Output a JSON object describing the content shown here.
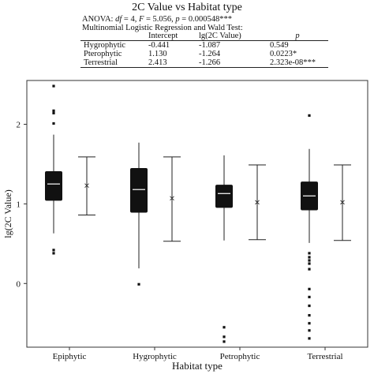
{
  "header": {
    "title": "2C Value vs Habitat type",
    "anova_prefix": "ANOVA: ",
    "anova_df": "df",
    "anova_df_val": " = 4, ",
    "anova_f": "F",
    "anova_f_val": " = 5.056, ",
    "anova_p": "p",
    "anova_p_val": " = 0.000548***",
    "mlr_title": "Multinomial Logistic Regression and Wald Test:",
    "table_headers": [
      "",
      "Intercept",
      "lg(2C Value)",
      "p"
    ],
    "table_rows": [
      [
        "Hygrophytic",
        "-0.441",
        "-1.087",
        "0.549"
      ],
      [
        "Pterophytic",
        "1.130",
        "-1.264",
        "0.0223*"
      ],
      [
        "Terrestrial",
        "2.413",
        "-1.266",
        "2.323e-08***"
      ]
    ]
  },
  "chart_data": {
    "type": "box",
    "title": "2C Value vs Habitat type",
    "xlabel": "Habitat type",
    "ylabel": "lg(2C Value)",
    "ylim": [
      -0.8,
      2.55
    ],
    "yticks": [
      0,
      1,
      2
    ],
    "grid": false,
    "categories": [
      "Epiphytic",
      "Hygrophytic",
      "Petrophytic",
      "Terrestrial"
    ],
    "boxes": [
      {
        "category": "Epiphytic",
        "q1": 1.04,
        "median": 1.25,
        "q3": 1.41,
        "whisker_low": 0.63,
        "whisker_high": 1.87,
        "outliers": [
          2.48,
          2.17,
          2.14,
          2.01,
          0.42,
          0.38
        ],
        "mean": 1.23,
        "error_low": 0.86,
        "error_high": 1.59
      },
      {
        "category": "Hygrophytic",
        "q1": 0.89,
        "median": 1.18,
        "q3": 1.45,
        "whisker_low": 0.19,
        "whisker_high": 1.77,
        "outliers": [
          -0.01
        ],
        "mean": 1.07,
        "error_low": 0.53,
        "error_high": 1.59
      },
      {
        "category": "Petrophytic",
        "q1": 0.95,
        "median": 1.13,
        "q3": 1.24,
        "whisker_low": 0.54,
        "whisker_high": 1.61,
        "outliers": [
          -0.55,
          -0.67,
          -0.73
        ],
        "mean": 1.02,
        "error_low": 0.55,
        "error_high": 1.49
      },
      {
        "category": "Terrestrial",
        "q1": 0.92,
        "median": 1.1,
        "q3": 1.28,
        "whisker_low": 0.51,
        "whisker_high": 1.69,
        "outliers": [
          2.11,
          0.38,
          0.33,
          0.29,
          0.25,
          0.18,
          -0.07,
          -0.17,
          -0.28,
          -0.4,
          -0.5,
          -0.59,
          -0.69
        ],
        "mean": 1.02,
        "error_low": 0.54,
        "error_high": 1.49
      }
    ],
    "colors": {
      "box": "#111111",
      "median": "#ffffff",
      "axis": "#333333"
    }
  }
}
